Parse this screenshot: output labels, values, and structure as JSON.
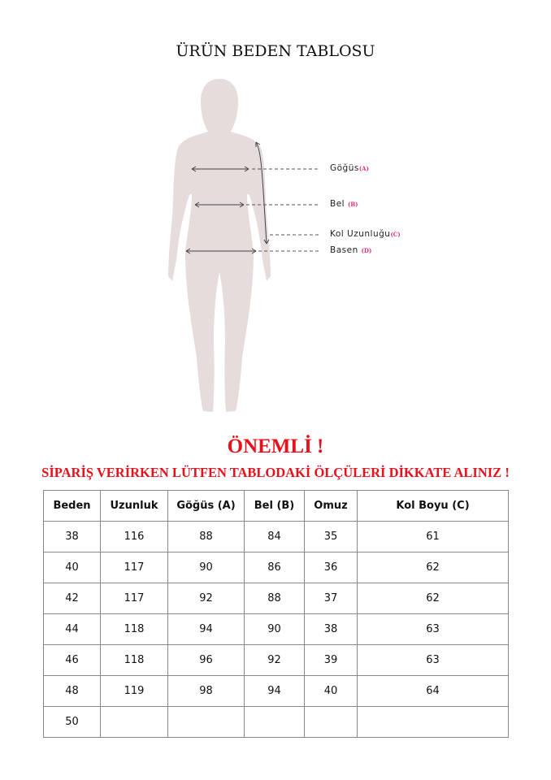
{
  "title": "ÜRÜN BEDEN TABLOSU",
  "figure": {
    "labels": [
      {
        "name": "Göğüs",
        "code": "(A)"
      },
      {
        "name": "Bel",
        "code": "(B)"
      },
      {
        "name": "Kol Uzunluğu",
        "code": "(C)"
      },
      {
        "name": "Basen",
        "code": "(D)"
      }
    ],
    "silhouette_color": "#e6dcdc",
    "code_color": "#e0307a"
  },
  "important": "ÖNEMLİ !",
  "warning": "SİPARİŞ VERİRKEN LÜTFEN TABLODAKİ ÖLÇÜLERİ DİKKATE ALINIZ !",
  "accent": "#e8101c",
  "table": {
    "headers": [
      "Beden",
      "Uzunluk",
      "Göğüs (A)",
      "Bel (B)",
      "Omuz",
      "Kol Boyu (C)"
    ],
    "rows": [
      [
        "38",
        "116",
        "88",
        "84",
        "35",
        "61"
      ],
      [
        "40",
        "117",
        "90",
        "86",
        "36",
        "62"
      ],
      [
        "42",
        "117",
        "92",
        "88",
        "37",
        "62"
      ],
      [
        "44",
        "118",
        "94",
        "90",
        "38",
        "63"
      ],
      [
        "46",
        "118",
        "96",
        "92",
        "39",
        "63"
      ],
      [
        "48",
        "119",
        "98",
        "94",
        "40",
        "64"
      ],
      [
        "50",
        "",
        "",
        "",
        "",
        ""
      ]
    ]
  }
}
